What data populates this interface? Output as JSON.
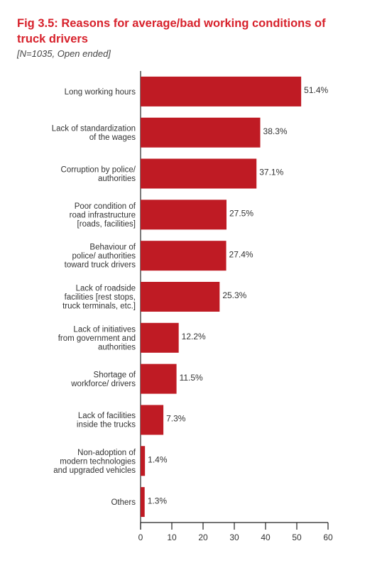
{
  "chart_data": {
    "type": "bar",
    "orientation": "horizontal",
    "title": "Fig 3.5: Reasons for average/bad working conditions of truck drivers",
    "subtitle": "[N=1035, Open ended]",
    "categories": [
      "Long working hours",
      "Lack of standardization\nof the wages",
      "Corruption by police/\nauthorities",
      "Poor condition of\nroad infrastructure\n[roads, facilities]",
      "Behaviour of\npolice/ authorities\ntoward truck drivers",
      "Lack of roadside\nfacilities [rest stops,\ntruck terminals, etc.]",
      "Lack of initiatives\nfrom government and\nauthorities",
      "Shortage of\nworkforce/ drivers",
      "Lack of facilities\ninside the trucks",
      "Non-adoption of\nmodern technologies\nand upgraded vehicles",
      "Others"
    ],
    "values": [
      51.4,
      38.3,
      37.1,
      27.5,
      27.4,
      25.3,
      12.2,
      11.5,
      7.3,
      1.4,
      1.3
    ],
    "value_labels": [
      "51.4%",
      "38.3%",
      "37.1%",
      "27.5%",
      "27.4%",
      "25.3%",
      "12.2%",
      "11.5%",
      "7.3%",
      "1.4%",
      "1.3%"
    ],
    "xlim": [
      0,
      60
    ],
    "xticks": [
      "0",
      "10",
      "20",
      "30",
      "40",
      "50",
      "60"
    ],
    "xlabel": "",
    "ylabel": "",
    "grid": false,
    "bar_color": "#bf1b24",
    "title_color": "#d7212b"
  }
}
